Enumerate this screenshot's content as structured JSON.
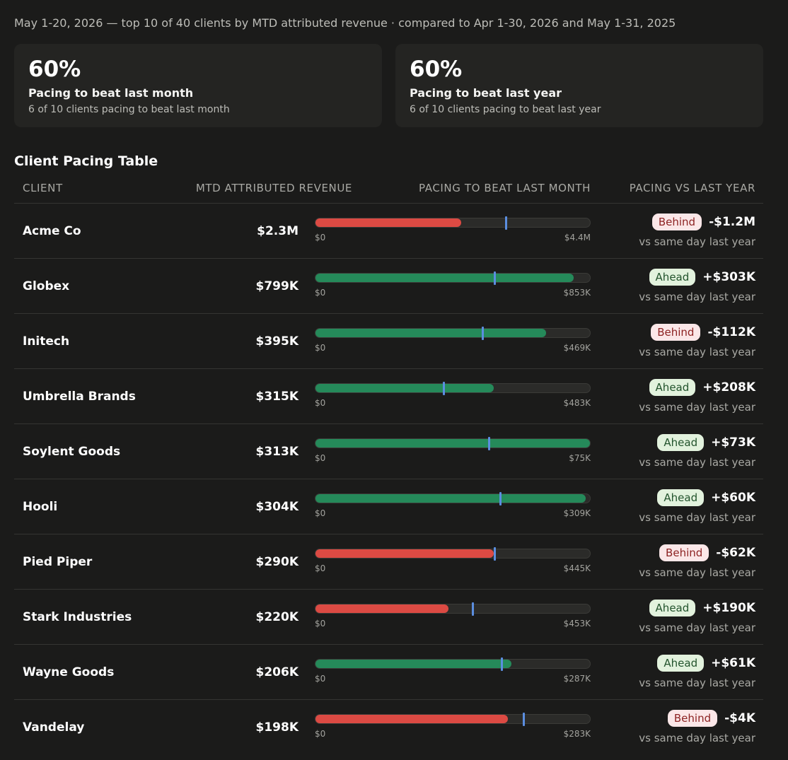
{
  "header": {
    "subtitle": "May 1-20, 2026 — top 10 of 40 clients by MTD attributed revenue · compared to Apr 1-30, 2026 and May 1-31, 2025"
  },
  "kpis": [
    {
      "value": "60%",
      "label": "Pacing to beat last month",
      "sub": "6 of 10 clients pacing to beat last month"
    },
    {
      "value": "60%",
      "label": "Pacing to beat last year",
      "sub": "6 of 10 clients pacing to beat last year"
    }
  ],
  "table": {
    "title": "Client Pacing Table",
    "columns": [
      "Client",
      "MTD Attributed Revenue",
      "Pacing to beat last month",
      "Pacing vs last year"
    ],
    "axis_min_label": "$0",
    "year_note": "vs same day last year",
    "colors": {
      "ahead_bar": "#258a5a",
      "behind_bar": "#dc4a43",
      "marker": "#5b8ee0"
    },
    "rows": [
      {
        "client": "Acme Co",
        "revenue": "$2.3M",
        "max_label": "$4.4M",
        "fill_fraction": 0.53,
        "marker_fraction": 0.69,
        "bar_status": "behind",
        "yoy_status": "Behind",
        "yoy_delta": "-$1.2M"
      },
      {
        "client": "Globex",
        "revenue": "$799K",
        "max_label": "$853K",
        "fill_fraction": 0.94,
        "marker_fraction": 0.65,
        "bar_status": "ahead",
        "yoy_status": "Ahead",
        "yoy_delta": "+$303K"
      },
      {
        "client": "Initech",
        "revenue": "$395K",
        "max_label": "$469K",
        "fill_fraction": 0.84,
        "marker_fraction": 0.605,
        "bar_status": "ahead",
        "yoy_status": "Behind",
        "yoy_delta": "-$112K"
      },
      {
        "client": "Umbrella Brands",
        "revenue": "$315K",
        "max_label": "$483K",
        "fill_fraction": 0.65,
        "marker_fraction": 0.465,
        "bar_status": "ahead",
        "yoy_status": "Ahead",
        "yoy_delta": "+$208K"
      },
      {
        "client": "Soylent Goods",
        "revenue": "$313K",
        "max_label": "$75K",
        "fill_fraction": 1.0,
        "marker_fraction": 0.63,
        "bar_status": "ahead",
        "yoy_status": "Ahead",
        "yoy_delta": "+$73K"
      },
      {
        "client": "Hooli",
        "revenue": "$304K",
        "max_label": "$309K",
        "fill_fraction": 0.985,
        "marker_fraction": 0.67,
        "bar_status": "ahead",
        "yoy_status": "Ahead",
        "yoy_delta": "+$60K"
      },
      {
        "client": "Pied Piper",
        "revenue": "$290K",
        "max_label": "$445K",
        "fill_fraction": 0.65,
        "marker_fraction": 0.65,
        "bar_status": "behind",
        "yoy_status": "Behind",
        "yoy_delta": "-$62K"
      },
      {
        "client": "Stark Industries",
        "revenue": "$220K",
        "max_label": "$453K",
        "fill_fraction": 0.485,
        "marker_fraction": 0.57,
        "bar_status": "behind",
        "yoy_status": "Ahead",
        "yoy_delta": "+$190K"
      },
      {
        "client": "Wayne Goods",
        "revenue": "$206K",
        "max_label": "$287K",
        "fill_fraction": 0.715,
        "marker_fraction": 0.675,
        "bar_status": "ahead",
        "yoy_status": "Ahead",
        "yoy_delta": "+$61K"
      },
      {
        "client": "Vandelay",
        "revenue": "$198K",
        "max_label": "$283K",
        "fill_fraction": 0.7,
        "marker_fraction": 0.755,
        "bar_status": "behind",
        "yoy_status": "Behind",
        "yoy_delta": "-$4K"
      }
    ]
  }
}
